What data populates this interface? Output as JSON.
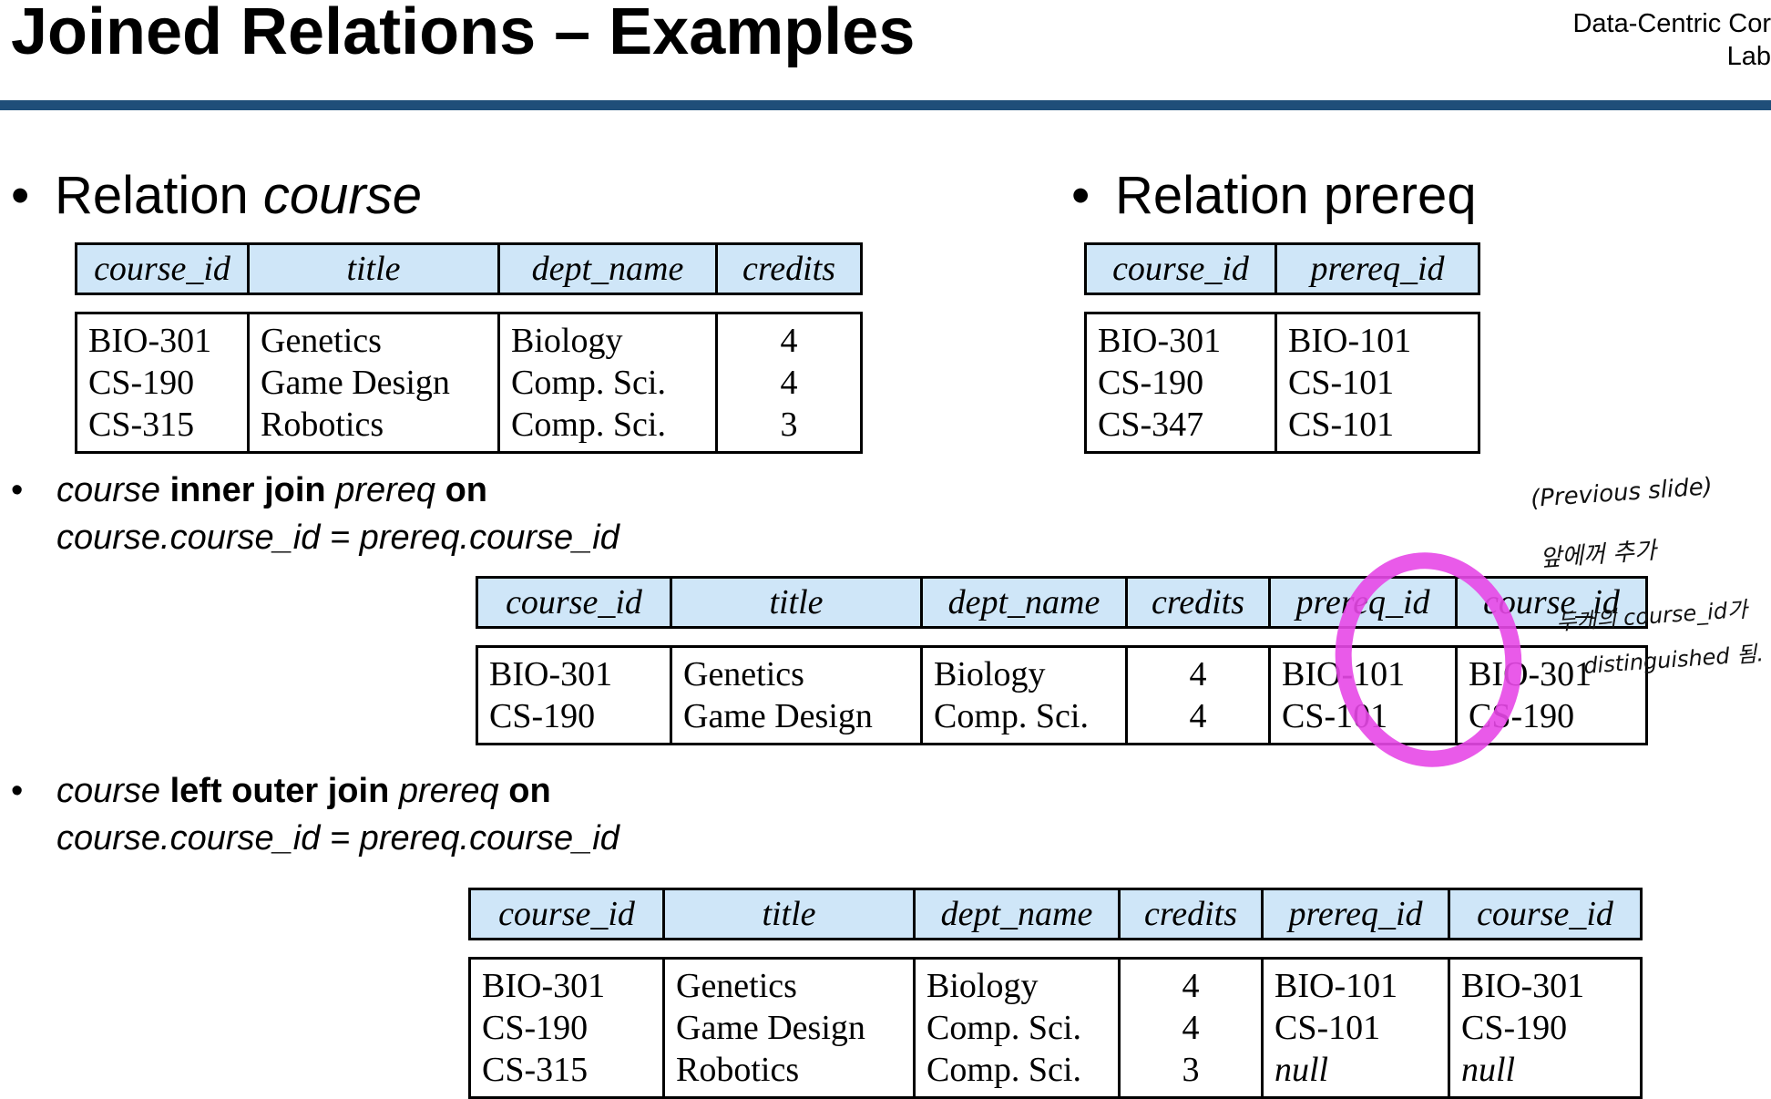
{
  "slide": {
    "title": "Joined Relations – Examples",
    "brand_line1": "Data-Centric Cor",
    "brand_line2": "Lab",
    "accent_color": "#1f4e79"
  },
  "section_course": {
    "prefix": "Relation ",
    "name": "course",
    "headers": [
      "course_id",
      "title",
      "dept_name",
      "credits"
    ],
    "columns": [
      [
        "BIO-301",
        "CS-190",
        "CS-315"
      ],
      [
        "Genetics",
        "Game Design",
        "Robotics"
      ],
      [
        "Biology",
        "Comp. Sci.",
        "Comp. Sci."
      ],
      [
        "4",
        "4",
        "3"
      ]
    ]
  },
  "section_prereq": {
    "text": "Relation prereq",
    "headers": [
      "course_id",
      "prereq_id"
    ],
    "columns": [
      [
        "BIO-301",
        "CS-190",
        "CS-347"
      ],
      [
        "BIO-101",
        "CS-101",
        "CS-101"
      ]
    ]
  },
  "inner_join": {
    "left": "course",
    "op": " inner join ",
    "right": "prereq",
    "kw": " on",
    "condition": "course.course_id = prereq.course_id",
    "headers": [
      "course_id",
      "title",
      "dept_name",
      "credits",
      "prereq_id",
      "course_id"
    ],
    "columns": [
      [
        "BIO-301",
        "CS-190"
      ],
      [
        "Genetics",
        "Game Design"
      ],
      [
        "Biology",
        "Comp. Sci."
      ],
      [
        "4",
        "4"
      ],
      [
        "BIO-101",
        "CS-101"
      ],
      [
        "BIO-301",
        "CS-190"
      ]
    ],
    "highlight_color": "#c77bd6"
  },
  "left_outer_join": {
    "left": "course",
    "op": " left outer join ",
    "right": "prereq",
    "kw": " on",
    "condition": "course.course_id = prereq.course_id",
    "headers": [
      "course_id",
      "title",
      "dept_name",
      "credits",
      "prereq_id",
      "course_id"
    ],
    "columns": [
      [
        "BIO-301",
        "CS-190",
        "CS-315"
      ],
      [
        "Genetics",
        "Game Design",
        "Robotics"
      ],
      [
        "Biology",
        "Comp. Sci.",
        "Comp. Sci."
      ],
      [
        "4",
        "4",
        "3"
      ],
      [
        "BIO-101",
        "CS-101",
        "null"
      ],
      [
        "BIO-301",
        "CS-190",
        "null"
      ]
    ]
  },
  "handwritten": {
    "line1": "(Previous slide)",
    "line2": "앞에꺼 추가",
    "line3": "두개의 course_id가",
    "line4": "distinguished 됨.",
    "circle_color": "#e748e7"
  }
}
